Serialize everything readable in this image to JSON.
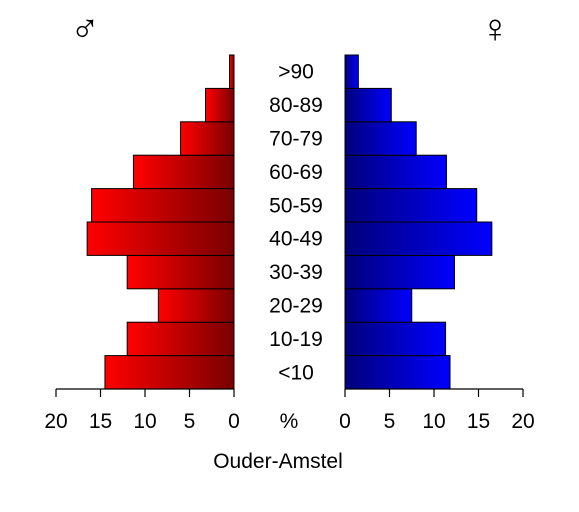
{
  "chart_data": {
    "type": "bar",
    "orientation": "population-pyramid",
    "caption": "Ouder-Amstel",
    "unit_label": "%",
    "symbols": {
      "left": "♂",
      "right": "♀"
    },
    "categories": [
      "<10",
      "10-19",
      "20-29",
      "30-39",
      "40-49",
      "50-59",
      "60-69",
      "70-79",
      "80-89",
      ">90"
    ],
    "series": [
      {
        "side": "left",
        "values": [
          14.5,
          12.0,
          8.5,
          12.0,
          16.5,
          16.0,
          11.3,
          6.0,
          3.2,
          0.5
        ]
      },
      {
        "side": "right",
        "values": [
          11.8,
          11.3,
          7.5,
          12.3,
          16.5,
          14.8,
          11.4,
          8.0,
          5.2,
          1.5
        ]
      }
    ],
    "xlim": [
      0,
      20
    ],
    "ticks": [
      "20",
      "15",
      "10",
      "5",
      "0",
      "0",
      "5",
      "10",
      "15",
      "20"
    ],
    "colors": {
      "left_light": "#ff0000",
      "left_dark": "#7a0000",
      "right_light": "#0000ff",
      "right_dark": "#00007a"
    }
  }
}
